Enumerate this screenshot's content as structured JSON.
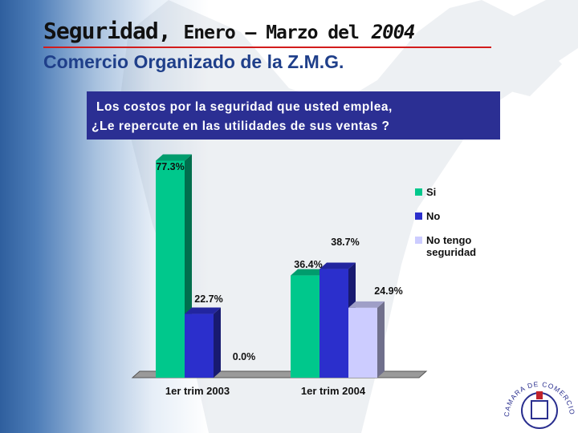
{
  "header": {
    "title_main": "Seguridad,",
    "title_mid": "Enero – Marzo del",
    "title_year": "2004",
    "subtitle": "Comercio Organizado de la Z.M.G."
  },
  "question": {
    "line1": "Los costos por la seguridad que usted emplea,",
    "line2": "¿Le repercute en las utilidades de sus ventas ?"
  },
  "colors": {
    "title_rule": "#d21c1c",
    "question_bg": "#2b2f93",
    "series_si": "#00c88c",
    "series_no": "#2b2fcc",
    "series_no_tengo": "#ccccff"
  },
  "chart_data": {
    "type": "bar",
    "style": "3d-clustered-columns",
    "categories": [
      "1er trim 2003",
      "1er trim 2004"
    ],
    "series": [
      {
        "name": "Si",
        "values": [
          77.3,
          36.4
        ],
        "labels": [
          "77.3%",
          "36.4%"
        ]
      },
      {
        "name": "No",
        "values": [
          22.7,
          38.7
        ],
        "labels": [
          "22.7%",
          "38.7%"
        ]
      },
      {
        "name": "No tengo seguridad",
        "values": [
          0.0,
          24.9
        ],
        "labels": [
          "0.0%",
          "24.9%"
        ]
      }
    ],
    "legend_lines": [
      [
        "Si"
      ],
      [
        "No"
      ],
      [
        "No tengo",
        "seguridad"
      ]
    ],
    "ylim": [
      0,
      80
    ],
    "grid": false,
    "legend_position": "right"
  },
  "logo": {
    "text": "CAMARA DE COMERCIO DE GUADALAJARA"
  }
}
